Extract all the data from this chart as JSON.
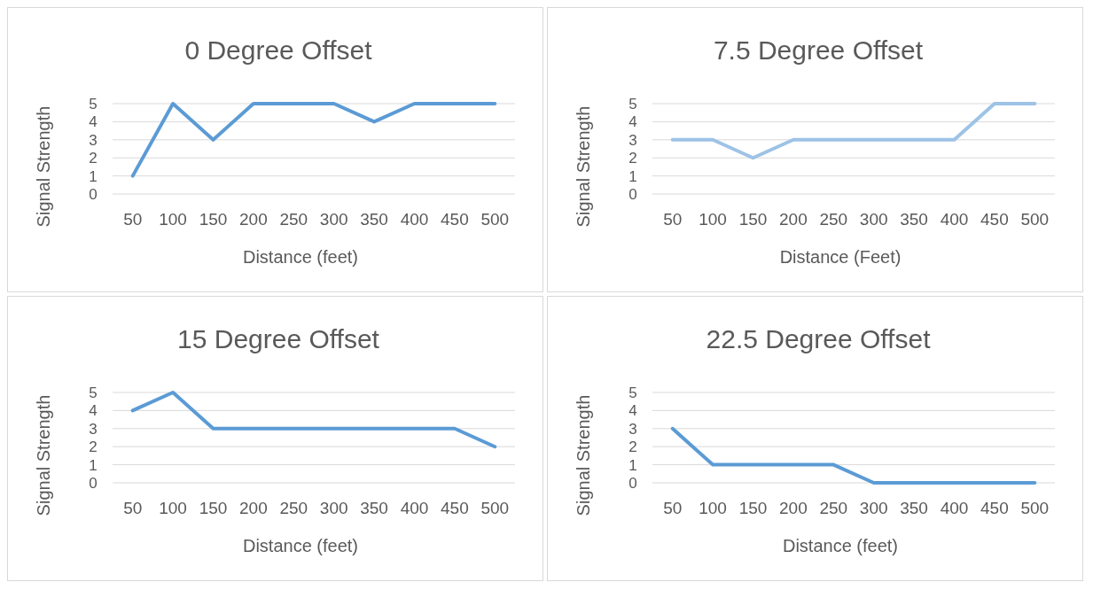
{
  "chart_data": [
    {
      "type": "line",
      "title": "0 Degree Offset",
      "xlabel": "Distance (feet)",
      "ylabel": "Signal Strength",
      "categories": [
        "50",
        "100",
        "150",
        "200",
        "250",
        "300",
        "350",
        "400",
        "450",
        "500"
      ],
      "series": [
        {
          "color": "#5b9bd5",
          "values": [
            1,
            5,
            3,
            5,
            5,
            5,
            4,
            5,
            5,
            5
          ]
        }
      ],
      "ylim": [
        0,
        5
      ],
      "yticks": [
        0,
        1,
        2,
        3,
        4,
        5
      ],
      "grid": "y"
    },
    {
      "type": "line",
      "title": "7.5 Degree Offset",
      "xlabel": "Distance (Feet)",
      "ylabel": "Signal Strength",
      "categories": [
        "50",
        "100",
        "150",
        "200",
        "250",
        "300",
        "350",
        "400",
        "450",
        "500"
      ],
      "series": [
        {
          "color": "#9dc3e6",
          "values": [
            3,
            3,
            2,
            3,
            3,
            3,
            3,
            3,
            5,
            5
          ]
        }
      ],
      "ylim": [
        0,
        5
      ],
      "yticks": [
        0,
        1,
        2,
        3,
        4,
        5
      ],
      "grid": "y"
    },
    {
      "type": "line",
      "title": "15 Degree Offset",
      "xlabel": "Distance (feet)",
      "ylabel": "Signal Strength",
      "categories": [
        "50",
        "100",
        "150",
        "200",
        "250",
        "300",
        "350",
        "400",
        "450",
        "500"
      ],
      "series": [
        {
          "color": "#5b9bd5",
          "values": [
            4,
            5,
            3,
            3,
            3,
            3,
            3,
            3,
            3,
            2
          ]
        }
      ],
      "ylim": [
        0,
        5
      ],
      "yticks": [
        0,
        1,
        2,
        3,
        4,
        5
      ],
      "grid": "y"
    },
    {
      "type": "line",
      "title": "22.5 Degree Offset",
      "xlabel": "Distance (feet)",
      "ylabel": "Signal Strength",
      "categories": [
        "50",
        "100",
        "150",
        "200",
        "250",
        "300",
        "350",
        "400",
        "450",
        "500"
      ],
      "series": [
        {
          "color": "#5b9bd5",
          "values": [
            3,
            1,
            1,
            1,
            1,
            0,
            0,
            0,
            0,
            0
          ]
        }
      ],
      "ylim": [
        0,
        5
      ],
      "yticks": [
        0,
        1,
        2,
        3,
        4,
        5
      ],
      "grid": "y"
    }
  ]
}
